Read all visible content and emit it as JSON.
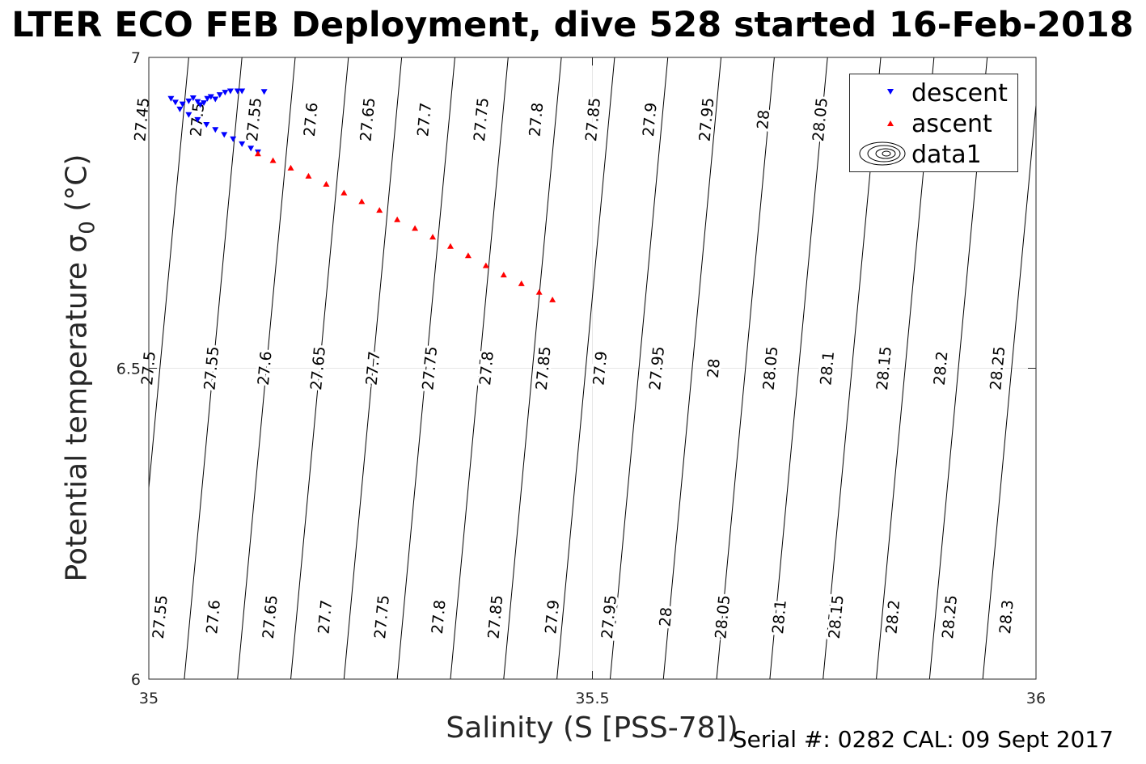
{
  "chart_data": {
    "type": "scatter",
    "title": "LTER ECO FEB Deployment, dive 528 started 16-Feb-2018",
    "xlabel": "Salinity (S [PSS-78])",
    "ylabel_main": "Potential temperature ",
    "ylabel_sigma": "σ",
    "ylabel_sub": "0",
    "ylabel_unit": " (°C)",
    "footer": "Serial #: 0282  CAL: 09 Sept 2017",
    "xlim": [
      35,
      36
    ],
    "ylim": [
      6,
      7
    ],
    "xticks": [
      "35",
      "35.5",
      "36"
    ],
    "yticks": [
      "6",
      "6.5",
      "7"
    ],
    "grid": "on",
    "legend_placement": "top-right",
    "legend": [
      {
        "label": "descent",
        "color": "#0000ff",
        "marker": "triangle-down"
      },
      {
        "label": "ascent",
        "color": "#ff0000",
        "marker": "triangle-up"
      },
      {
        "label": "data1",
        "color": "#000000",
        "marker": "contour"
      }
    ],
    "series": [
      {
        "name": "descent",
        "color": "#0000ff",
        "points": [
          [
            35.025,
            6.934
          ],
          [
            35.03,
            6.928
          ],
          [
            35.038,
            6.925
          ],
          [
            35.045,
            6.93
          ],
          [
            35.05,
            6.935
          ],
          [
            35.055,
            6.929
          ],
          [
            35.058,
            6.924
          ],
          [
            35.062,
            6.927
          ],
          [
            35.066,
            6.934
          ],
          [
            35.07,
            6.937
          ],
          [
            35.075,
            6.933
          ],
          [
            35.08,
            6.94
          ],
          [
            35.086,
            6.944
          ],
          [
            35.092,
            6.946
          ],
          [
            35.1,
            6.946
          ],
          [
            35.105,
            6.946
          ],
          [
            35.13,
            6.945
          ],
          [
            35.035,
            6.917
          ],
          [
            35.045,
            6.908
          ],
          [
            35.055,
            6.9
          ],
          [
            35.065,
            6.892
          ],
          [
            35.075,
            6.884
          ],
          [
            35.085,
            6.876
          ],
          [
            35.095,
            6.869
          ],
          [
            35.105,
            6.861
          ],
          [
            35.115,
            6.854
          ],
          [
            35.123,
            6.848
          ]
        ]
      },
      {
        "name": "ascent",
        "color": "#ff0000",
        "points": [
          [
            35.123,
            6.845
          ],
          [
            35.14,
            6.834
          ],
          [
            35.16,
            6.822
          ],
          [
            35.18,
            6.809
          ],
          [
            35.2,
            6.796
          ],
          [
            35.22,
            6.782
          ],
          [
            35.24,
            6.768
          ],
          [
            35.26,
            6.754
          ],
          [
            35.28,
            6.739
          ],
          [
            35.3,
            6.725
          ],
          [
            35.32,
            6.711
          ],
          [
            35.34,
            6.696
          ],
          [
            35.36,
            6.681
          ],
          [
            35.38,
            6.665
          ],
          [
            35.4,
            6.65
          ],
          [
            35.42,
            6.636
          ],
          [
            35.44,
            6.622
          ],
          [
            35.455,
            6.61
          ]
        ]
      }
    ],
    "contours": [
      {
        "level": "27.45",
        "s6": 34.92,
        "s7": 34.985,
        "labels": [
          [
            34.9925,
            6.9
          ]
        ]
      },
      {
        "level": "27.5",
        "s6": 34.98,
        "s7": 35.045,
        "labels": [
          [
            35.0,
            6.5
          ],
          [
            35.055,
            6.9
          ]
        ]
      },
      {
        "level": "27.55",
        "s6": 35.04,
        "s7": 35.105,
        "labels": [
          [
            35.013,
            6.1
          ],
          [
            35.071,
            6.5
          ],
          [
            35.119,
            6.9
          ]
        ]
      },
      {
        "level": "27.6",
        "s6": 35.1,
        "s7": 35.165,
        "labels": [
          [
            35.073,
            6.1
          ],
          [
            35.131,
            6.5
          ],
          [
            35.183,
            6.9
          ]
        ]
      },
      {
        "level": "27.65",
        "s6": 35.16,
        "s7": 35.225,
        "labels": [
          [
            35.137,
            6.1
          ],
          [
            35.191,
            6.5
          ],
          [
            35.247,
            6.9
          ]
        ]
      },
      {
        "level": "27.7",
        "s6": 35.22,
        "s7": 35.285,
        "labels": [
          [
            35.199,
            6.1
          ],
          [
            35.253,
            6.5
          ],
          [
            35.311,
            6.9
          ]
        ]
      },
      {
        "level": "27.75",
        "s6": 35.28,
        "s7": 35.345,
        "labels": [
          [
            35.263,
            6.1
          ],
          [
            35.317,
            6.5
          ],
          [
            35.375,
            6.9
          ]
        ]
      },
      {
        "level": "27.8",
        "s6": 35.34,
        "s7": 35.405,
        "labels": [
          [
            35.327,
            6.1
          ],
          [
            35.381,
            6.5
          ],
          [
            35.437,
            6.9
          ]
        ]
      },
      {
        "level": "27.85",
        "s6": 35.4,
        "s7": 35.465,
        "labels": [
          [
            35.391,
            6.1
          ],
          [
            35.445,
            6.5
          ],
          [
            35.501,
            6.9
          ]
        ]
      },
      {
        "level": "27.9",
        "s6": 35.46,
        "s7": 35.525,
        "labels": [
          [
            35.455,
            6.1
          ],
          [
            35.509,
            6.5
          ],
          [
            35.565,
            6.9
          ]
        ]
      },
      {
        "level": "27.95",
        "s6": 35.52,
        "s7": 35.585,
        "labels": [
          [
            35.519,
            6.1
          ],
          [
            35.573,
            6.5
          ],
          [
            35.629,
            6.9
          ]
        ]
      },
      {
        "level": "28",
        "s6": 35.58,
        "s7": 35.645,
        "labels": [
          [
            35.583,
            6.1
          ],
          [
            35.637,
            6.5
          ],
          [
            35.693,
            6.9
          ]
        ]
      },
      {
        "level": "28.05",
        "s6": 35.64,
        "s7": 35.705,
        "labels": [
          [
            35.647,
            6.1
          ],
          [
            35.701,
            6.5
          ],
          [
            35.757,
            6.9
          ]
        ]
      },
      {
        "level": "28.1",
        "s6": 35.7,
        "s7": 35.765,
        "labels": [
          [
            35.711,
            6.1
          ],
          [
            35.765,
            6.5
          ]
        ]
      },
      {
        "level": "28.15",
        "s6": 35.76,
        "s7": 35.825,
        "labels": [
          [
            35.775,
            6.1
          ],
          [
            35.829,
            6.5
          ]
        ]
      },
      {
        "level": "28.2",
        "s6": 35.82,
        "s7": 35.885,
        "labels": [
          [
            35.839,
            6.1
          ],
          [
            35.893,
            6.5
          ]
        ]
      },
      {
        "level": "28.25",
        "s6": 35.88,
        "s7": 35.945,
        "labels": [
          [
            35.903,
            6.1
          ],
          [
            35.957,
            6.5
          ]
        ]
      },
      {
        "level": "28.3",
        "s6": 35.94,
        "s7": 36.005,
        "labels": [
          [
            35.967,
            6.1
          ]
        ]
      },
      {
        "level": "",
        "s6": 36.0,
        "s7": 36.065,
        "labels": []
      },
      {
        "level": "",
        "s6": 36.06,
        "s7": 36.125,
        "labels": []
      }
    ]
  }
}
